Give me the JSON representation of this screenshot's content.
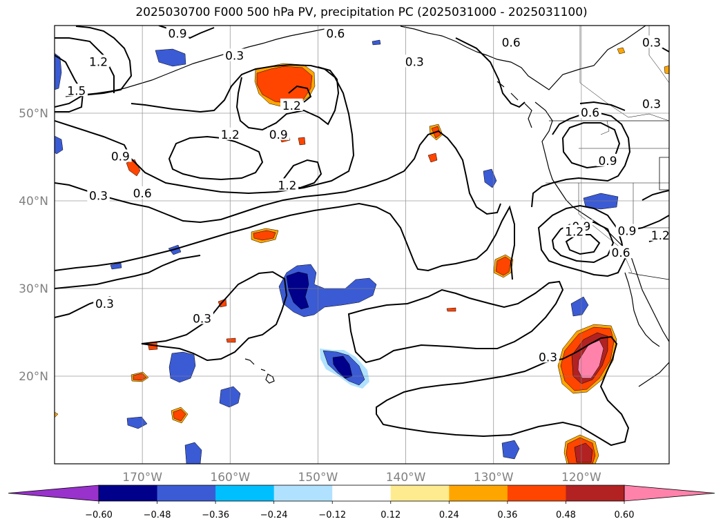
{
  "title": "2025030700 F000 500 hPa PV, precipitation PC (2025031000 - 2025031100)",
  "chart_data": {
    "type": "map",
    "projection": "PlateCarree",
    "lon_range": [
      -180,
      -110
    ],
    "lat_range": [
      10,
      60
    ],
    "grid": true,
    "lon_ticks": [
      -170,
      -160,
      -150,
      -140,
      -130,
      -120
    ],
    "lon_tick_labels": [
      "170°W",
      "160°W",
      "150°W",
      "140°W",
      "130°W",
      "120°W"
    ],
    "lat_ticks": [
      20,
      30,
      40,
      50
    ],
    "lat_tick_labels": [
      "20°N",
      "30°N",
      "40°N",
      "50°N"
    ],
    "contour_field": "500 hPa PV",
    "contour_color": "#000000",
    "contour_labels": [
      {
        "text": "0.9",
        "lon": -166,
        "lat": 59
      },
      {
        "text": "0.6",
        "lon": -148,
        "lat": 59
      },
      {
        "text": "0.6",
        "lon": -128,
        "lat": 58
      },
      {
        "text": "0.3",
        "lon": -112,
        "lat": 58
      },
      {
        "text": "1.2",
        "lon": -175,
        "lat": 55.8
      },
      {
        "text": "1.5",
        "lon": -177.5,
        "lat": 52.5
      },
      {
        "text": "0.3",
        "lon": -159.5,
        "lat": 56.5
      },
      {
        "text": "0.3",
        "lon": -139,
        "lat": 55.8
      },
      {
        "text": "1.2",
        "lon": -153,
        "lat": 50.8
      },
      {
        "text": "0.3",
        "lon": -112,
        "lat": 51
      },
      {
        "text": "0.6",
        "lon": -119,
        "lat": 50
      },
      {
        "text": "1.2",
        "lon": -160,
        "lat": 47.5
      },
      {
        "text": "0.9",
        "lon": -154.5,
        "lat": 47.5
      },
      {
        "text": "0.9",
        "lon": -117,
        "lat": 44.5
      },
      {
        "text": "0.9",
        "lon": -172.5,
        "lat": 45
      },
      {
        "text": "1.2",
        "lon": -153.5,
        "lat": 41.7
      },
      {
        "text": "0.6",
        "lon": -170,
        "lat": 40.8
      },
      {
        "text": "0.3",
        "lon": -175,
        "lat": 40.5
      },
      {
        "text": "0.9",
        "lon": -120,
        "lat": 37
      },
      {
        "text": "1.2",
        "lon": -120.8,
        "lat": 36.4
      },
      {
        "text": "0.9",
        "lon": -114.8,
        "lat": 36.5
      },
      {
        "text": "1.2",
        "lon": -111,
        "lat": 36
      },
      {
        "text": "0.6",
        "lon": -115.5,
        "lat": 34
      },
      {
        "text": "0.3",
        "lon": -174.3,
        "lat": 28.2
      },
      {
        "text": "0.3",
        "lon": -163.2,
        "lat": 26.5
      },
      {
        "text": "0.3",
        "lon": -123.8,
        "lat": 22.1
      }
    ],
    "filled_field": "precipitation PC",
    "colorbar": {
      "levels": [
        -0.6,
        -0.48,
        -0.36,
        -0.24,
        -0.12,
        0.12,
        0.24,
        0.36,
        0.48,
        0.6
      ],
      "tick_labels": [
        "−0.60",
        "−0.48",
        "−0.36",
        "−0.24",
        "−0.12",
        "0.12",
        "0.24",
        "0.36",
        "0.48",
        "0.60"
      ],
      "colors": [
        "#9932cc",
        "#00008b",
        "#3b5bd5",
        "#00bfff",
        "#b0e2ff",
        "#ffffff",
        "#ffeb8f",
        "#ffa500",
        "#ff4500",
        "#b22222",
        "#ff82ab"
      ],
      "extend": "both"
    }
  }
}
